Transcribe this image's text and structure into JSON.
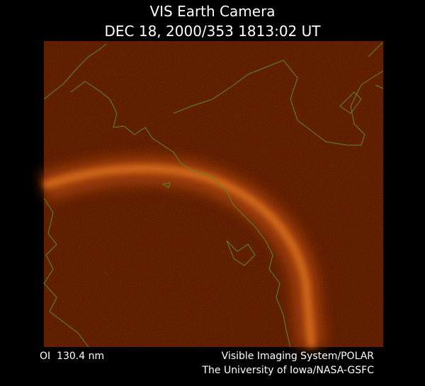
{
  "header": {
    "title": "VIS Earth Camera",
    "timestamp": "DEC 18, 2000/353 1813:02 UT"
  },
  "footer": {
    "wavelength": "OI  130.4 nm",
    "credit_lines": [
      "Visible Imaging System/POLAR",
      "The University of Iowa/NASA-GSFC"
    ]
  }
}
